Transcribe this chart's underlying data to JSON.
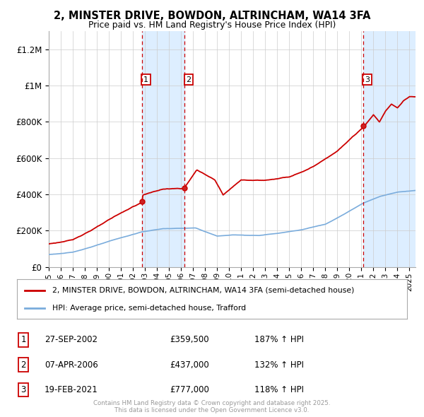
{
  "title_line1": "2, MINSTER DRIVE, BOWDON, ALTRINCHAM, WA14 3FA",
  "title_line2": "Price paid vs. HM Land Registry's House Price Index (HPI)",
  "ylim": [
    0,
    1300000
  ],
  "xlim_start": 1995.0,
  "xlim_end": 2025.5,
  "yticks": [
    0,
    200000,
    400000,
    600000,
    800000,
    1000000,
    1200000
  ],
  "ytick_labels": [
    "£0",
    "£200K",
    "£400K",
    "£600K",
    "£800K",
    "£1M",
    "£1.2M"
  ],
  "transactions": [
    {
      "label": "1",
      "date_num": 2002.74,
      "price": 359500,
      "date_str": "27-SEP-2002",
      "pct": "187%",
      "dir": "↑"
    },
    {
      "label": "2",
      "date_num": 2006.27,
      "price": 437000,
      "date_str": "07-APR-2006",
      "pct": "132%",
      "dir": "↑"
    },
    {
      "label": "3",
      "date_num": 2021.13,
      "price": 777000,
      "date_str": "19-FEB-2021",
      "pct": "118%",
      "dir": "↑"
    }
  ],
  "red_line_color": "#cc0000",
  "blue_line_color": "#7aacdc",
  "shade_color": "#ddeeff",
  "grid_color": "#cccccc",
  "background_color": "#ffffff",
  "legend_box_color": "#ffffff",
  "transaction_box_color": "#ffffff",
  "transaction_box_edge": "#cc0000",
  "footer_text": "Contains HM Land Registry data © Crown copyright and database right 2025.\nThis data is licensed under the Open Government Licence v3.0.",
  "legend_entry1": "2, MINSTER DRIVE, BOWDON, ALTRINCHAM, WA14 3FA (semi-detached house)",
  "legend_entry2": "HPI: Average price, semi-detached house, Trafford"
}
